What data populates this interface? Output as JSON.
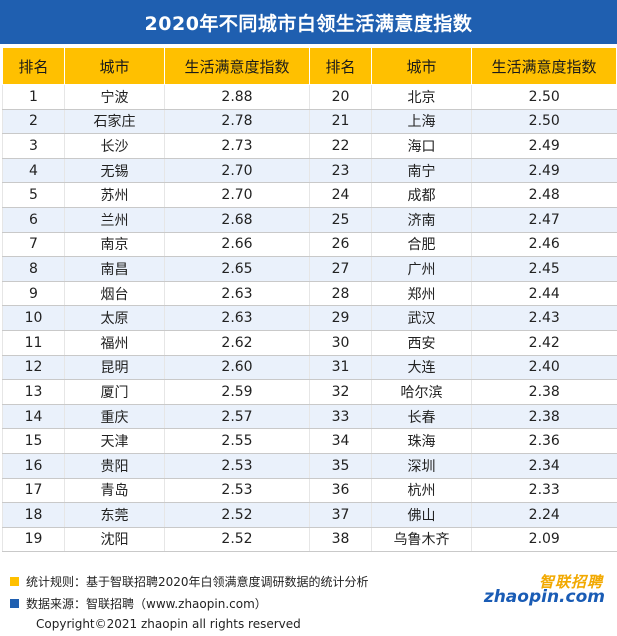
{
  "title": "2020年不同城市白领生活满意度指数",
  "headers": [
    "排名",
    "城市",
    "生活满意度指数",
    "排名",
    "城市",
    "生活满意度指数"
  ],
  "chart_data": {
    "type": "table",
    "title": "2020年不同城市白领生活满意度指数",
    "columns": [
      "排名",
      "城市",
      "生活满意度指数"
    ],
    "rows": [
      [
        1,
        "宁波",
        "2.88"
      ],
      [
        2,
        "石家庄",
        "2.78"
      ],
      [
        3,
        "长沙",
        "2.73"
      ],
      [
        4,
        "无锡",
        "2.70"
      ],
      [
        5,
        "苏州",
        "2.70"
      ],
      [
        6,
        "兰州",
        "2.68"
      ],
      [
        7,
        "南京",
        "2.66"
      ],
      [
        8,
        "南昌",
        "2.65"
      ],
      [
        9,
        "烟台",
        "2.63"
      ],
      [
        10,
        "太原",
        "2.63"
      ],
      [
        11,
        "福州",
        "2.62"
      ],
      [
        12,
        "昆明",
        "2.60"
      ],
      [
        13,
        "厦门",
        "2.59"
      ],
      [
        14,
        "重庆",
        "2.57"
      ],
      [
        15,
        "天津",
        "2.55"
      ],
      [
        16,
        "贵阳",
        "2.53"
      ],
      [
        17,
        "青岛",
        "2.53"
      ],
      [
        18,
        "东莞",
        "2.52"
      ],
      [
        19,
        "沈阳",
        "2.52"
      ],
      [
        20,
        "北京",
        "2.50"
      ],
      [
        21,
        "上海",
        "2.50"
      ],
      [
        22,
        "海口",
        "2.49"
      ],
      [
        23,
        "南宁",
        "2.49"
      ],
      [
        24,
        "成都",
        "2.48"
      ],
      [
        25,
        "济南",
        "2.47"
      ],
      [
        26,
        "合肥",
        "2.46"
      ],
      [
        27,
        "广州",
        "2.45"
      ],
      [
        28,
        "郑州",
        "2.44"
      ],
      [
        29,
        "武汉",
        "2.43"
      ],
      [
        30,
        "西安",
        "2.42"
      ],
      [
        31,
        "大连",
        "2.40"
      ],
      [
        32,
        "哈尔滨",
        "2.38"
      ],
      [
        33,
        "长春",
        "2.38"
      ],
      [
        34,
        "珠海",
        "2.36"
      ],
      [
        35,
        "深圳",
        "2.34"
      ],
      [
        36,
        "杭州",
        "2.33"
      ],
      [
        37,
        "佛山",
        "2.24"
      ],
      [
        38,
        "乌鲁木齐",
        "2.09"
      ]
    ]
  },
  "footer": {
    "note1": "统计规则：基于智联招聘2020年白领满意度调研数据的统计分析",
    "note2": "数据来源：智联招聘（www.zhaopin.com）",
    "copyright": "Copyright©2021 zhaopin all rights reserved",
    "note1_color": "#ffc000",
    "note2_color": "#1f5fb0",
    "logo_cn": "智联招聘",
    "logo_en": "zhaopin.com"
  },
  "colors": {
    "title_bg": "#1f5fb0",
    "header_bg": "#ffc000",
    "row_alt_bg": "#eaf1fb"
  }
}
